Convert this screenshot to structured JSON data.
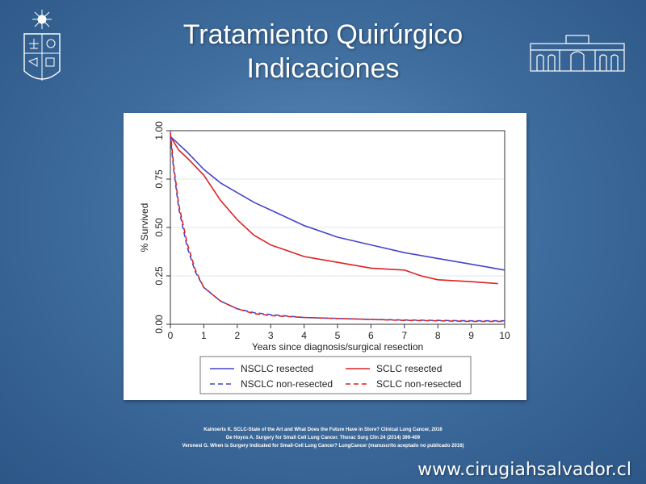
{
  "slide": {
    "title_line1": "Tratamiento Quirúrgico",
    "title_line2": "Indicaciones",
    "url": "www.cirugiahsalvador.cl",
    "logos": {
      "left": "university-crest-icon",
      "right": "hospital-building-icon"
    }
  },
  "references": [
    "Kalnoerts K. SCLC-State of the Art and What Does the Future Have in Store? Clinical Lung Cancer, 2016",
    "De Hoyos A. Surgery for Small Cell Lung Cancer. Thorac Surg Clin 24 (2014) 399-409",
    "Veronesi G. When is Surgery Indicated for Small-Cell Lung Cancer? LungCancer (manuscrito aceptado no publicado 2016)"
  ],
  "chart_data": {
    "type": "line",
    "title": "",
    "xlabel": "Years since diagnosis/surgical resection",
    "ylabel": "% Survived",
    "xlim": [
      0,
      10
    ],
    "ylim": [
      0,
      1
    ],
    "x_ticks": [
      "0",
      "1",
      "2",
      "3",
      "4",
      "5",
      "6",
      "7",
      "8",
      "9",
      "10"
    ],
    "y_ticks": [
      "0.00",
      "0.25",
      "0.50",
      "0.75",
      "1.00"
    ],
    "grid": "horizontal",
    "legend_position": "bottom",
    "colors": {
      "nsclc": "#4444cc",
      "sclc": "#dd2222"
    },
    "series": [
      {
        "name": "NSCLC resected",
        "color": "#4444cc",
        "dash": "solid",
        "x": [
          0,
          0.25,
          0.5,
          1,
          1.5,
          2,
          2.5,
          3,
          4,
          5,
          6,
          7,
          8,
          9,
          10
        ],
        "y": [
          0.97,
          0.93,
          0.89,
          0.8,
          0.73,
          0.68,
          0.63,
          0.59,
          0.51,
          0.45,
          0.41,
          0.37,
          0.34,
          0.31,
          0.28
        ]
      },
      {
        "name": "SCLC resected",
        "color": "#dd2222",
        "dash": "solid",
        "x": [
          0,
          0.25,
          0.5,
          1,
          1.5,
          2,
          2.5,
          3,
          3.5,
          4,
          5,
          6,
          7,
          7.5,
          8,
          9,
          9.8
        ],
        "y": [
          0.97,
          0.9,
          0.86,
          0.77,
          0.64,
          0.54,
          0.46,
          0.41,
          0.38,
          0.35,
          0.32,
          0.29,
          0.28,
          0.25,
          0.23,
          0.22,
          0.21
        ]
      },
      {
        "name": "NSCLC non-resected",
        "color": "#4444cc",
        "dash": "dashed",
        "x": [
          0,
          0.1,
          0.25,
          0.5,
          0.75,
          1,
          1.5,
          2,
          2.5,
          3,
          4,
          5,
          6,
          7,
          8,
          9,
          10
        ],
        "y": [
          0.97,
          0.8,
          0.6,
          0.4,
          0.27,
          0.19,
          0.12,
          0.08,
          0.06,
          0.05,
          0.035,
          0.03,
          0.025,
          0.022,
          0.02,
          0.018,
          0.018
        ]
      },
      {
        "name": "SCLC non-resected",
        "color": "#dd2222",
        "dash": "dashed",
        "x": [
          0,
          0.1,
          0.25,
          0.5,
          0.75,
          1,
          1.5,
          2,
          2.5,
          3,
          4,
          5,
          6,
          7,
          8,
          9,
          10
        ],
        "y": [
          0.99,
          0.82,
          0.62,
          0.42,
          0.28,
          0.19,
          0.12,
          0.08,
          0.055,
          0.045,
          0.035,
          0.03,
          0.025,
          0.02,
          0.018,
          0.015,
          0.015
        ]
      }
    ]
  }
}
